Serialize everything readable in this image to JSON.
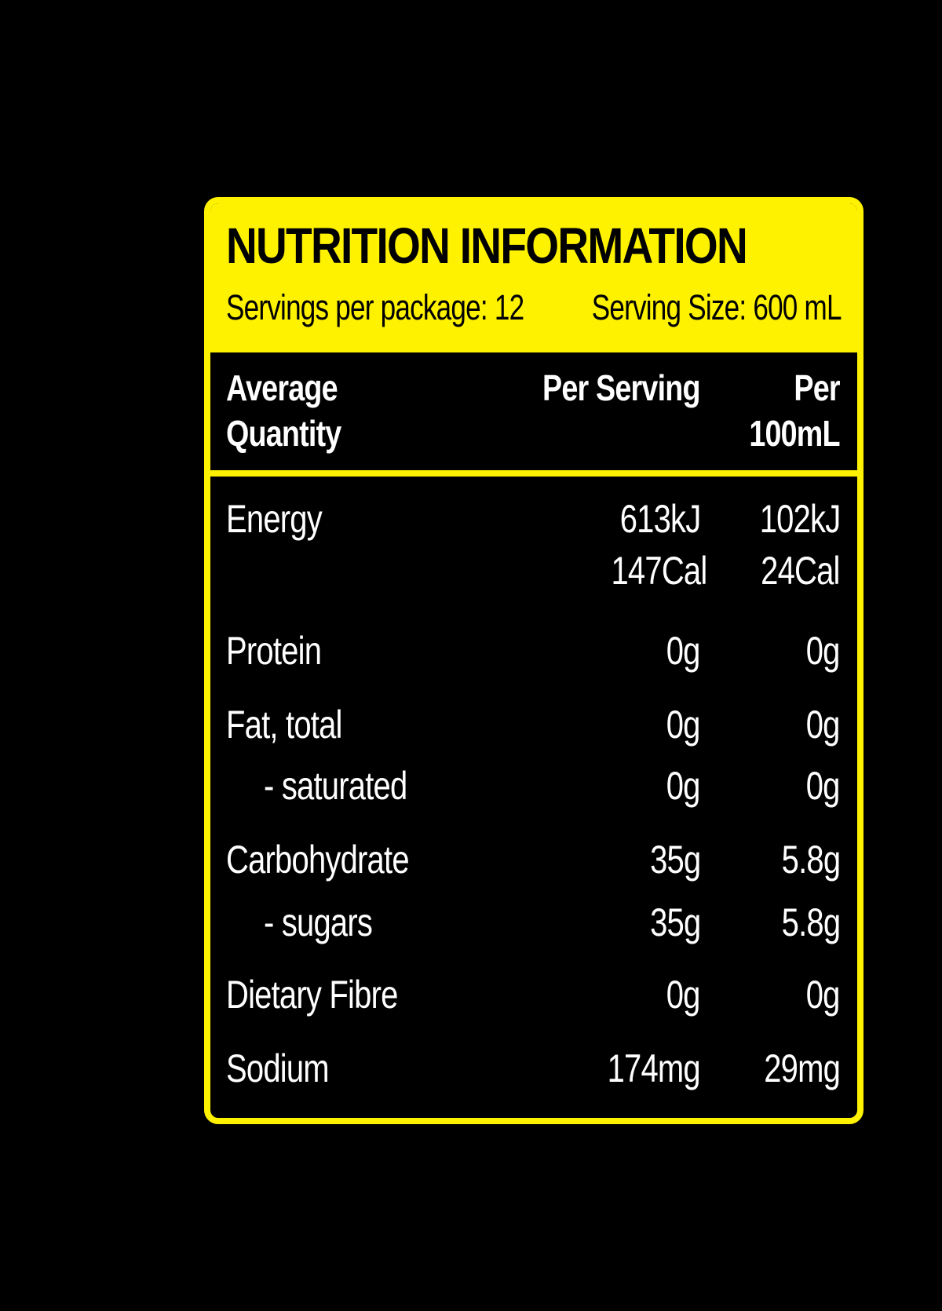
{
  "colors": {
    "background": "#000000",
    "accent": "#FFF200",
    "text_on_dark": "#FFFFFF",
    "text_on_accent": "#000000"
  },
  "label": {
    "title": "NUTRITION INFORMATION",
    "servings_per_package": "Servings per package: 12",
    "serving_size": "Serving Size: 600 mL"
  },
  "columns": {
    "quantity": "Average\nQuantity",
    "per_serving": "Per Serving",
    "per_100ml": "Per\n100mL"
  },
  "nutrients": [
    {
      "name": "Energy",
      "per_serving": "613kJ",
      "per_100ml": "102kJ",
      "per_serving_2": "147Cal",
      "per_100ml_2": "24Cal"
    },
    {
      "name": "Protein",
      "per_serving": "0g",
      "per_100ml": "0g"
    },
    {
      "name": "Fat, total",
      "per_serving": "0g",
      "per_100ml": "0g"
    },
    {
      "name": "- saturated",
      "per_serving": "0g",
      "per_100ml": "0g"
    },
    {
      "name": "Carbohydrate",
      "per_serving": "35g",
      "per_100ml": "5.8g"
    },
    {
      "name": "- sugars",
      "per_serving": "35g",
      "per_100ml": "5.8g"
    },
    {
      "name": "Dietary Fibre",
      "per_serving": "0g",
      "per_100ml": "0g"
    },
    {
      "name": "Sodium",
      "per_serving": "174mg",
      "per_100ml": "29mg"
    }
  ]
}
